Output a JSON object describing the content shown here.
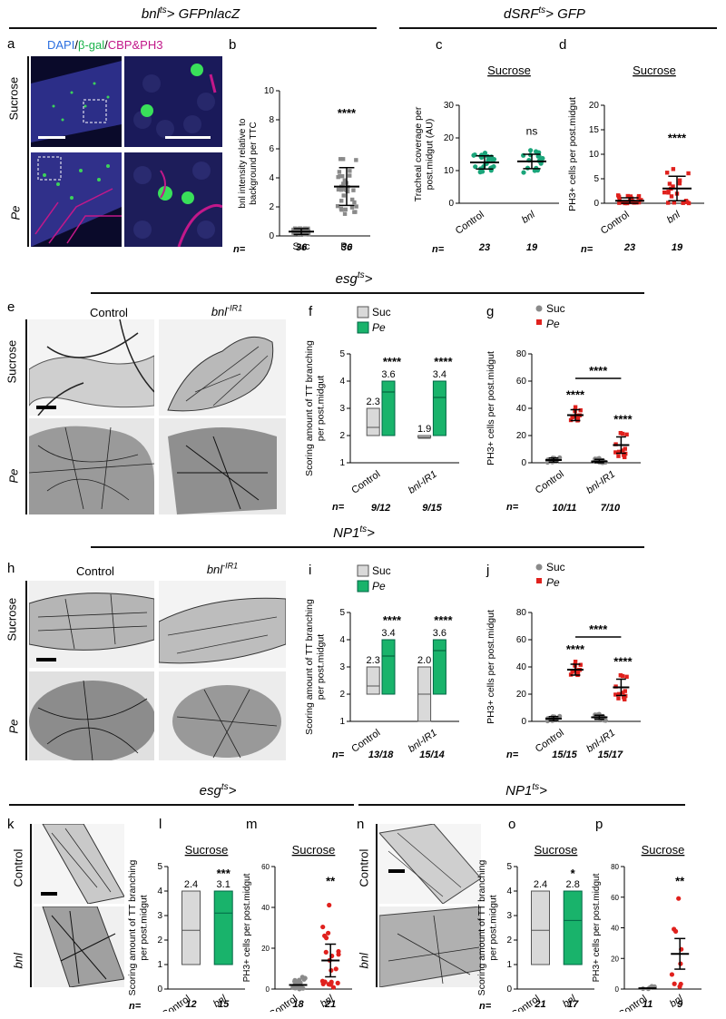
{
  "headers": {
    "top_left": "bnlts> GFPnlacZ",
    "top_right": "dSRFts> GFP",
    "row2": "esgts>",
    "row3": "NP1ts>",
    "row4_left": "esgts>",
    "row4_right": "NP1ts>"
  },
  "panel_a": {
    "letter": "a",
    "stain_dapi": "DAPI",
    "stain_bgal": "β-gal",
    "stain_cbp": "CBP&PH3",
    "rows": [
      "Sucrose",
      "Pe"
    ]
  },
  "panel_e": {
    "letter": "e",
    "cols": [
      "Control",
      "bnl-IR1"
    ],
    "rows": [
      "Sucrose",
      "Pe"
    ]
  },
  "panel_h": {
    "letter": "h",
    "cols": [
      "Control",
      "bnl-IR1"
    ],
    "rows": [
      "Sucrose",
      "Pe"
    ]
  },
  "panel_k": {
    "letter": "k",
    "rows": [
      "Control",
      "bnl"
    ]
  },
  "panel_n": {
    "letter": "n",
    "rows": [
      "Control",
      "bnl"
    ]
  },
  "n_label": "n=",
  "colors": {
    "sucrose_grey": "#d9d9d9",
    "pe_green": "#19b36b",
    "teal": "#1aa57a",
    "red": "#e0211d",
    "grey_dot": "#8a8a8a",
    "rule": "#111111"
  },
  "chart_data": [
    {
      "panel": "b",
      "type": "scatter",
      "ylabel": "bnl intensity relative to background per TTC",
      "categories": [
        "Suc",
        "Pe"
      ],
      "ylim": [
        0,
        10
      ],
      "yticks": [
        0,
        2,
        4,
        6,
        8,
        10
      ],
      "means": [
        0.3,
        3.4
      ],
      "sd": [
        0.2,
        1.3
      ],
      "significance": "****",
      "n": [
        "36",
        "36"
      ]
    },
    {
      "panel": "c",
      "type": "scatter",
      "title": "Sucrose",
      "ylabel": "Tracheal coverage per post.midgut (AU)",
      "categories": [
        "Control",
        "bnl"
      ],
      "ylim": [
        0,
        30
      ],
      "yticks": [
        0,
        10,
        20,
        30
      ],
      "means": [
        12.5,
        12.8
      ],
      "sd": [
        2,
        2.2
      ],
      "significance": "ns",
      "n": [
        "23",
        "19"
      ]
    },
    {
      "panel": "d",
      "type": "scatter",
      "title": "Sucrose",
      "ylabel": "PH3+ cells per post.midgut",
      "categories": [
        "Control",
        "bnl"
      ],
      "ylim": [
        0,
        20
      ],
      "yticks": [
        0,
        5,
        10,
        15,
        20
      ],
      "means": [
        0.5,
        3
      ],
      "sd": [
        0.6,
        2.5
      ],
      "significance": "****",
      "n": [
        "23",
        "19"
      ]
    },
    {
      "panel": "f",
      "type": "bar",
      "ylabel": "Scoring amount of TT branching per post.midgut",
      "legend": [
        "Suc",
        "Pe"
      ],
      "categories": [
        "Control",
        "bnl-IR1"
      ],
      "ylim": [
        1,
        5
      ],
      "yticks": [
        1,
        2,
        3,
        4,
        5
      ],
      "series": [
        {
          "name": "Suc",
          "means": [
            2.3,
            1.9
          ],
          "box": [
            [
              2,
              3
            ],
            [
              2,
              2
            ]
          ]
        },
        {
          "name": "Pe",
          "means": [
            3.6,
            3.4
          ],
          "box": [
            [
              2,
              4
            ],
            [
              2,
              4
            ]
          ]
        }
      ],
      "significance": [
        "****",
        "****"
      ],
      "n": [
        "9/12",
        "9/15"
      ]
    },
    {
      "panel": "g",
      "type": "scatter",
      "ylabel": "PH3+ cells per post.midgut",
      "legend": [
        "Suc",
        "Pe"
      ],
      "categories": [
        "Control",
        "bnl-IR1"
      ],
      "ylim": [
        0,
        80
      ],
      "yticks": [
        0,
        20,
        40,
        60,
        80
      ],
      "series": [
        {
          "name": "Suc",
          "means": [
            2,
            1
          ]
        },
        {
          "name": "Pe",
          "means": [
            35,
            13
          ]
        }
      ],
      "significance": [
        "****",
        "****",
        "****"
      ],
      "n": [
        "10/11",
        "7/10"
      ]
    },
    {
      "panel": "i",
      "type": "bar",
      "ylabel": "Scoring amount of TT branching per post.midgut",
      "legend": [
        "Suc",
        "Pe"
      ],
      "categories": [
        "Control",
        "bnl-IR1"
      ],
      "ylim": [
        1,
        5
      ],
      "yticks": [
        1,
        2,
        3,
        4,
        5
      ],
      "series": [
        {
          "name": "Suc",
          "means": [
            2.3,
            2.0
          ],
          "box": [
            [
              2,
              3
            ],
            [
              1,
              3
            ]
          ]
        },
        {
          "name": "Pe",
          "means": [
            3.4,
            3.6
          ],
          "box": [
            [
              2,
              4
            ],
            [
              2,
              4
            ]
          ]
        }
      ],
      "significance": [
        "****",
        "****"
      ],
      "n": [
        "13/18",
        "15/14"
      ]
    },
    {
      "panel": "j",
      "type": "scatter",
      "ylabel": "PH3+ cells per post.midgut",
      "legend": [
        "Suc",
        "Pe"
      ],
      "categories": [
        "Control",
        "bnl-IR1"
      ],
      "ylim": [
        0,
        80
      ],
      "yticks": [
        0,
        20,
        40,
        60,
        80
      ],
      "series": [
        {
          "name": "Suc",
          "means": [
            2,
            3
          ]
        },
        {
          "name": "Pe",
          "means": [
            38,
            25
          ]
        }
      ],
      "significance": [
        "****",
        "****",
        "****"
      ],
      "n": [
        "15/15",
        "15/17"
      ]
    },
    {
      "panel": "l",
      "type": "bar",
      "title": "Sucrose",
      "ylabel": "Scoring amount of TT branching per post.midgut",
      "categories": [
        "Control",
        "bnl"
      ],
      "ylim": [
        0,
        5
      ],
      "yticks": [
        0,
        1,
        2,
        3,
        4,
        5
      ],
      "means": [
        2.4,
        3.1
      ],
      "box": [
        [
          1,
          4
        ],
        [
          1,
          4
        ]
      ],
      "significance": "***",
      "n": [
        "12",
        "15"
      ]
    },
    {
      "panel": "m",
      "type": "scatter",
      "title": "Sucrose",
      "ylabel": "PH3+ cells per post.midgut",
      "categories": [
        "Control",
        "bnl"
      ],
      "ylim": [
        0,
        60
      ],
      "yticks": [
        0,
        20,
        40,
        60
      ],
      "means": [
        2,
        14
      ],
      "significance": "**",
      "n": [
        "18",
        "21"
      ]
    },
    {
      "panel": "o",
      "type": "bar",
      "title": "Sucrose",
      "ylabel": "Scoring amount of TT branching per post.midgut",
      "categories": [
        "Control",
        "bnl"
      ],
      "ylim": [
        0,
        5
      ],
      "yticks": [
        0,
        1,
        2,
        3,
        4,
        5
      ],
      "means": [
        2.4,
        2.8
      ],
      "box": [
        [
          1,
          4
        ],
        [
          1,
          4
        ]
      ],
      "significance": "*",
      "n": [
        "21",
        "17"
      ]
    },
    {
      "panel": "p",
      "type": "scatter",
      "title": "Sucrose",
      "ylabel": "PH3+ cells per post.midgut",
      "categories": [
        "Control",
        "bnl"
      ],
      "ylim": [
        0,
        80
      ],
      "yticks": [
        0,
        20,
        40,
        60,
        80
      ],
      "means": [
        0.5,
        23
      ],
      "significance": "**",
      "n": [
        "11",
        "9"
      ]
    }
  ]
}
